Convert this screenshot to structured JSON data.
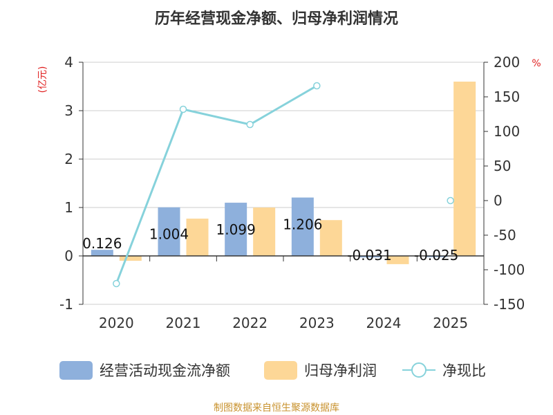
{
  "chart_data": {
    "type": "bar",
    "title": "历年经营现金净额、归母净利润情况",
    "left_axis_unit": "(亿元)",
    "right_axis_unit": "%",
    "categories": [
      "2020",
      "2021",
      "2022",
      "2023",
      "2024",
      "2025"
    ],
    "left_ylim": [
      -1,
      4
    ],
    "left_ticks": [
      -1,
      0,
      1,
      2,
      3,
      4
    ],
    "right_ylim": [
      -150,
      200
    ],
    "right_ticks": [
      -150,
      -100,
      -50,
      0,
      50,
      100,
      150,
      200
    ],
    "grid": true,
    "legend_position": "bottom",
    "series": [
      {
        "name": "经营活动现金流净额",
        "kind": "bar",
        "axis": "left",
        "color": "#8eb0dc",
        "values": [
          0.126,
          1.004,
          1.099,
          1.206,
          -0.031,
          -0.025
        ],
        "labels": [
          "0.126",
          "1.004",
          "1.099",
          "1.206",
          "-0.031",
          "-0.025"
        ]
      },
      {
        "name": "归母净利润",
        "kind": "bar",
        "axis": "left",
        "color": "#fdd797",
        "values": [
          -0.1,
          0.77,
          1.0,
          0.74,
          -0.17,
          3.6
        ]
      },
      {
        "name": "净现比",
        "kind": "line",
        "axis": "right",
        "color": "#86d2db",
        "values": [
          -120,
          132,
          110,
          166,
          null,
          0
        ]
      }
    ],
    "source": "制图数据来自恒生聚源数据库"
  }
}
